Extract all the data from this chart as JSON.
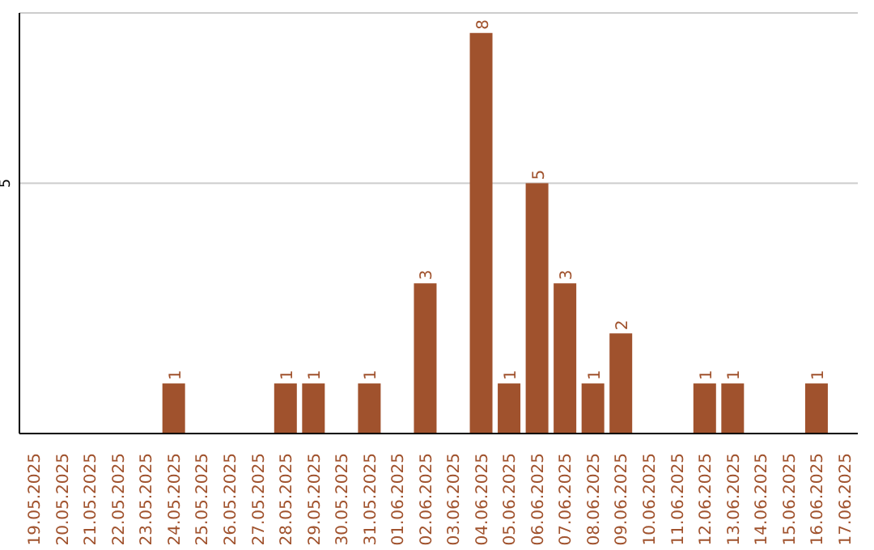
{
  "chart_data": {
    "type": "bar",
    "categories": [
      "19.05.2025",
      "20.05.2025",
      "21.05.2025",
      "22.05.2025",
      "23.05.2025",
      "24.05.2025",
      "25.05.2025",
      "26.05.2025",
      "27.05.2025",
      "28.05.2025",
      "29.05.2025",
      "30.05.2025",
      "31.05.2025",
      "01.06.2025",
      "02.06.2025",
      "03.06.2025",
      "04.06.2025",
      "05.06.2025",
      "06.06.2025",
      "07.06.2025",
      "08.06.2025",
      "09.06.2025",
      "10.06.2025",
      "11.06.2025",
      "12.06.2025",
      "13.06.2025",
      "14.06.2025",
      "15.06.2025",
      "16.06.2025",
      "17.06.2025"
    ],
    "values": [
      0,
      0,
      0,
      0,
      0,
      1,
      0,
      0,
      0,
      1,
      1,
      0,
      1,
      0,
      3,
      0,
      8,
      1,
      5,
      3,
      1,
      2,
      0,
      0,
      1,
      1,
      0,
      0,
      1,
      0
    ],
    "value_labels": [
      null,
      null,
      null,
      null,
      null,
      "1",
      null,
      null,
      null,
      "1",
      "1",
      null,
      "1",
      null,
      "3",
      null,
      "8",
      "1",
      "5",
      "3",
      "1",
      "2",
      null,
      null,
      "1",
      "1",
      null,
      null,
      "1",
      null
    ],
    "color": "#a0522d",
    "ylim": [
      0,
      8.4
    ],
    "yticks": [
      5
    ],
    "grid": "y"
  }
}
